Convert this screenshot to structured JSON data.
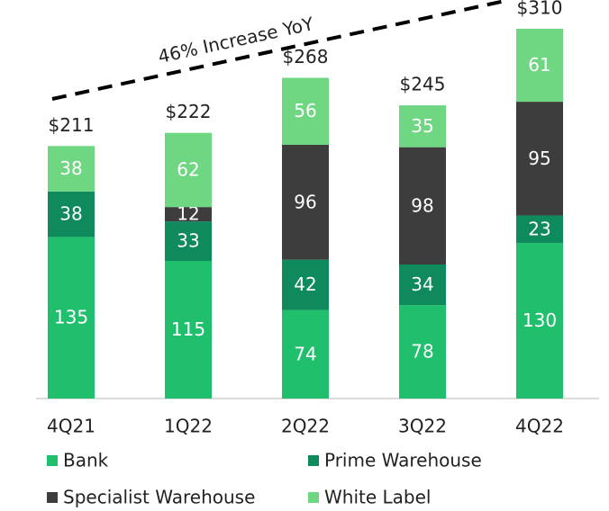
{
  "chart_data": {
    "type": "stacked_bar",
    "annotation": "46% Increase YoY",
    "categories": [
      "4Q21",
      "1Q22",
      "2Q22",
      "3Q22",
      "4Q22"
    ],
    "series": [
      {
        "name": "Bank",
        "color": "#1fbf6e",
        "values": [
          135,
          115,
          74,
          78,
          130
        ]
      },
      {
        "name": "Prime Warehouse",
        "color": "#0f8a5d",
        "values": [
          38,
          33,
          42,
          34,
          23
        ]
      },
      {
        "name": "Specialist Warehouse",
        "color": "#3d3d3d",
        "values": [
          null,
          12,
          96,
          98,
          95
        ]
      },
      {
        "name": "White Label",
        "color": "#6fd782",
        "values": [
          38,
          62,
          56,
          35,
          61
        ]
      }
    ],
    "total_labels": [
      "$211",
      "$222",
      "$268",
      "$245",
      "$310"
    ],
    "ylim": [
      0,
      330
    ]
  }
}
